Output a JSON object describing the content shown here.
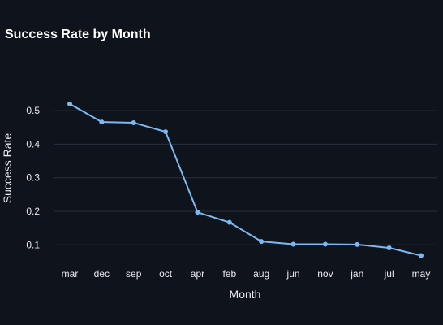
{
  "chart_data": {
    "type": "line",
    "title": "Success Rate by Month",
    "xlabel": "Month",
    "ylabel": "Success Rate",
    "categories": [
      "mar",
      "dec",
      "sep",
      "oct",
      "apr",
      "feb",
      "aug",
      "jun",
      "nov",
      "jan",
      "jul",
      "may"
    ],
    "series": [
      {
        "values": [
          0.52,
          0.466,
          0.464,
          0.437,
          0.197,
          0.167,
          0.11,
          0.102,
          0.102,
          0.101,
          0.091,
          0.068
        ]
      }
    ],
    "yticks": [
      "0.1",
      "0.2",
      "0.3",
      "0.4",
      "0.5"
    ],
    "ylim": [
      0.045,
      0.585
    ],
    "grid": true,
    "line_color": "#7cb8f2",
    "background_color": "#0f131b"
  }
}
